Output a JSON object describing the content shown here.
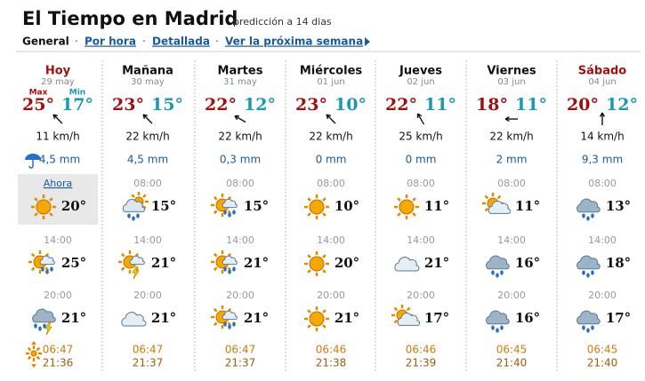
{
  "header": {
    "title": "El Tiempo en Madrid",
    "subtitle": "predicción a 14 dias"
  },
  "nav": [
    "General",
    "Por hora",
    "Detallada",
    "Ver la próxima semana"
  ],
  "labels": {
    "max": "Max",
    "min": "Min"
  },
  "days": [
    {
      "name": "Hoy",
      "date": "29 may",
      "max": "25°",
      "min": "17°",
      "wind": "11 km/h",
      "rain": "4,5 mm",
      "slots": [
        {
          "time": "Ahora",
          "temp": "20°"
        },
        {
          "time": "14:00",
          "temp": "25°"
        },
        {
          "time": "20:00",
          "temp": "21°"
        }
      ],
      "sunrise": "06:47",
      "sunset": "21:36"
    },
    {
      "name": "Mañana",
      "date": "30 may",
      "max": "23°",
      "min": "15°",
      "wind": "22 km/h",
      "rain": "4,5 mm",
      "slots": [
        {
          "time": "08:00",
          "temp": "15°"
        },
        {
          "time": "14:00",
          "temp": "21°"
        },
        {
          "time": "20:00",
          "temp": "21°"
        }
      ],
      "sunrise": "06:47",
      "sunset": "21:37"
    },
    {
      "name": "Martes",
      "date": "31 may",
      "max": "22°",
      "min": "12°",
      "wind": "22 km/h",
      "rain": "0,3 mm",
      "slots": [
        {
          "time": "08:00",
          "temp": "15°"
        },
        {
          "time": "14:00",
          "temp": "21°"
        },
        {
          "time": "20:00",
          "temp": "21°"
        }
      ],
      "sunrise": "06:47",
      "sunset": "21:37"
    },
    {
      "name": "Miércoles",
      "date": "01 jun",
      "max": "23°",
      "min": "10°",
      "wind": "22 km/h",
      "rain": "0 mm",
      "slots": [
        {
          "time": "08:00",
          "temp": "10°"
        },
        {
          "time": "14:00",
          "temp": "20°"
        },
        {
          "time": "20:00",
          "temp": "21°"
        }
      ],
      "sunrise": "06:46",
      "sunset": "21:38"
    },
    {
      "name": "Jueves",
      "date": "02 jun",
      "max": "22°",
      "min": "11°",
      "wind": "25 km/h",
      "rain": "0 mm",
      "slots": [
        {
          "time": "08:00",
          "temp": "11°"
        },
        {
          "time": "14:00",
          "temp": "21°"
        },
        {
          "time": "20:00",
          "temp": "17°"
        }
      ],
      "sunrise": "06:46",
      "sunset": "21:39"
    },
    {
      "name": "Viernes",
      "date": "03 jun",
      "max": "18°",
      "min": "11°",
      "wind": "22 km/h",
      "rain": "2 mm",
      "slots": [
        {
          "time": "08:00",
          "temp": "11°"
        },
        {
          "time": "14:00",
          "temp": "16°"
        },
        {
          "time": "20:00",
          "temp": "16°"
        }
      ],
      "sunrise": "06:45",
      "sunset": "21:40"
    },
    {
      "name": "Sábado",
      "date": "04 jun",
      "max": "20°",
      "min": "12°",
      "wind": "14 km/h",
      "rain": "9,3 mm",
      "slots": [
        {
          "time": "08:00",
          "temp": "13°"
        },
        {
          "time": "14:00",
          "temp": "18°"
        },
        {
          "time": "20:00",
          "temp": "17°"
        }
      ],
      "sunrise": "06:45",
      "sunset": "21:40"
    }
  ]
}
